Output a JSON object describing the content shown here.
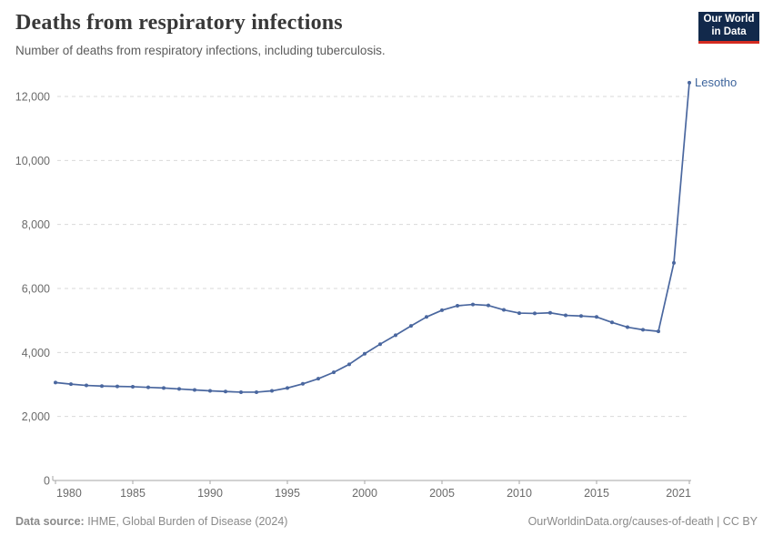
{
  "header": {
    "title": "Deaths from respiratory infections",
    "subtitle": "Number of deaths from respiratory infections, including tuberculosis.",
    "logo": {
      "line1": "Our World",
      "line2": "in Data"
    }
  },
  "chart_data": {
    "type": "line",
    "title": "Deaths from respiratory infections",
    "xlabel": "",
    "ylabel": "",
    "xlim": [
      1980,
      2021
    ],
    "ylim": [
      0,
      12600
    ],
    "xticks": [
      1980,
      1985,
      1990,
      1995,
      2000,
      2005,
      2010,
      2015,
      2021
    ],
    "yticks": [
      0,
      2000,
      4000,
      6000,
      8000,
      10000,
      12000
    ],
    "grid": "horizontal-dashed",
    "legend_position": "end-of-line-label",
    "x": [
      1980,
      1981,
      1982,
      1983,
      1984,
      1985,
      1986,
      1987,
      1988,
      1989,
      1990,
      1991,
      1992,
      1993,
      1994,
      1995,
      1996,
      1997,
      1998,
      1999,
      2000,
      2001,
      2002,
      2003,
      2004,
      2005,
      2006,
      2007,
      2008,
      2009,
      2010,
      2011,
      2012,
      2013,
      2014,
      2015,
      2016,
      2017,
      2018,
      2019,
      2020,
      2021
    ],
    "series": [
      {
        "name": "Lesotho",
        "color": "#4A679F",
        "values": [
          3060,
          3010,
          2970,
          2950,
          2940,
          2930,
          2910,
          2890,
          2860,
          2830,
          2800,
          2780,
          2760,
          2760,
          2800,
          2890,
          3020,
          3180,
          3380,
          3630,
          3960,
          4260,
          4540,
          4830,
          5110,
          5320,
          5460,
          5500,
          5470,
          5330,
          5230,
          5220,
          5240,
          5160,
          5140,
          5110,
          4940,
          4790,
          4710,
          4660,
          6800,
          12430
        ]
      }
    ]
  },
  "footer": {
    "source_label": "Data source:",
    "source_text": " IHME, Global Burden of Disease (2024)",
    "credit": "OurWorldinData.org/causes-of-death | CC BY"
  },
  "colors": {
    "line": "#4A679F",
    "entity_label": "#3D649C",
    "grid": "#DADADA",
    "axis": "#A5A5A5",
    "axis_text": "#6B6B6B",
    "logo_bg": "#12294B",
    "logo_accent": "#D42B21"
  }
}
